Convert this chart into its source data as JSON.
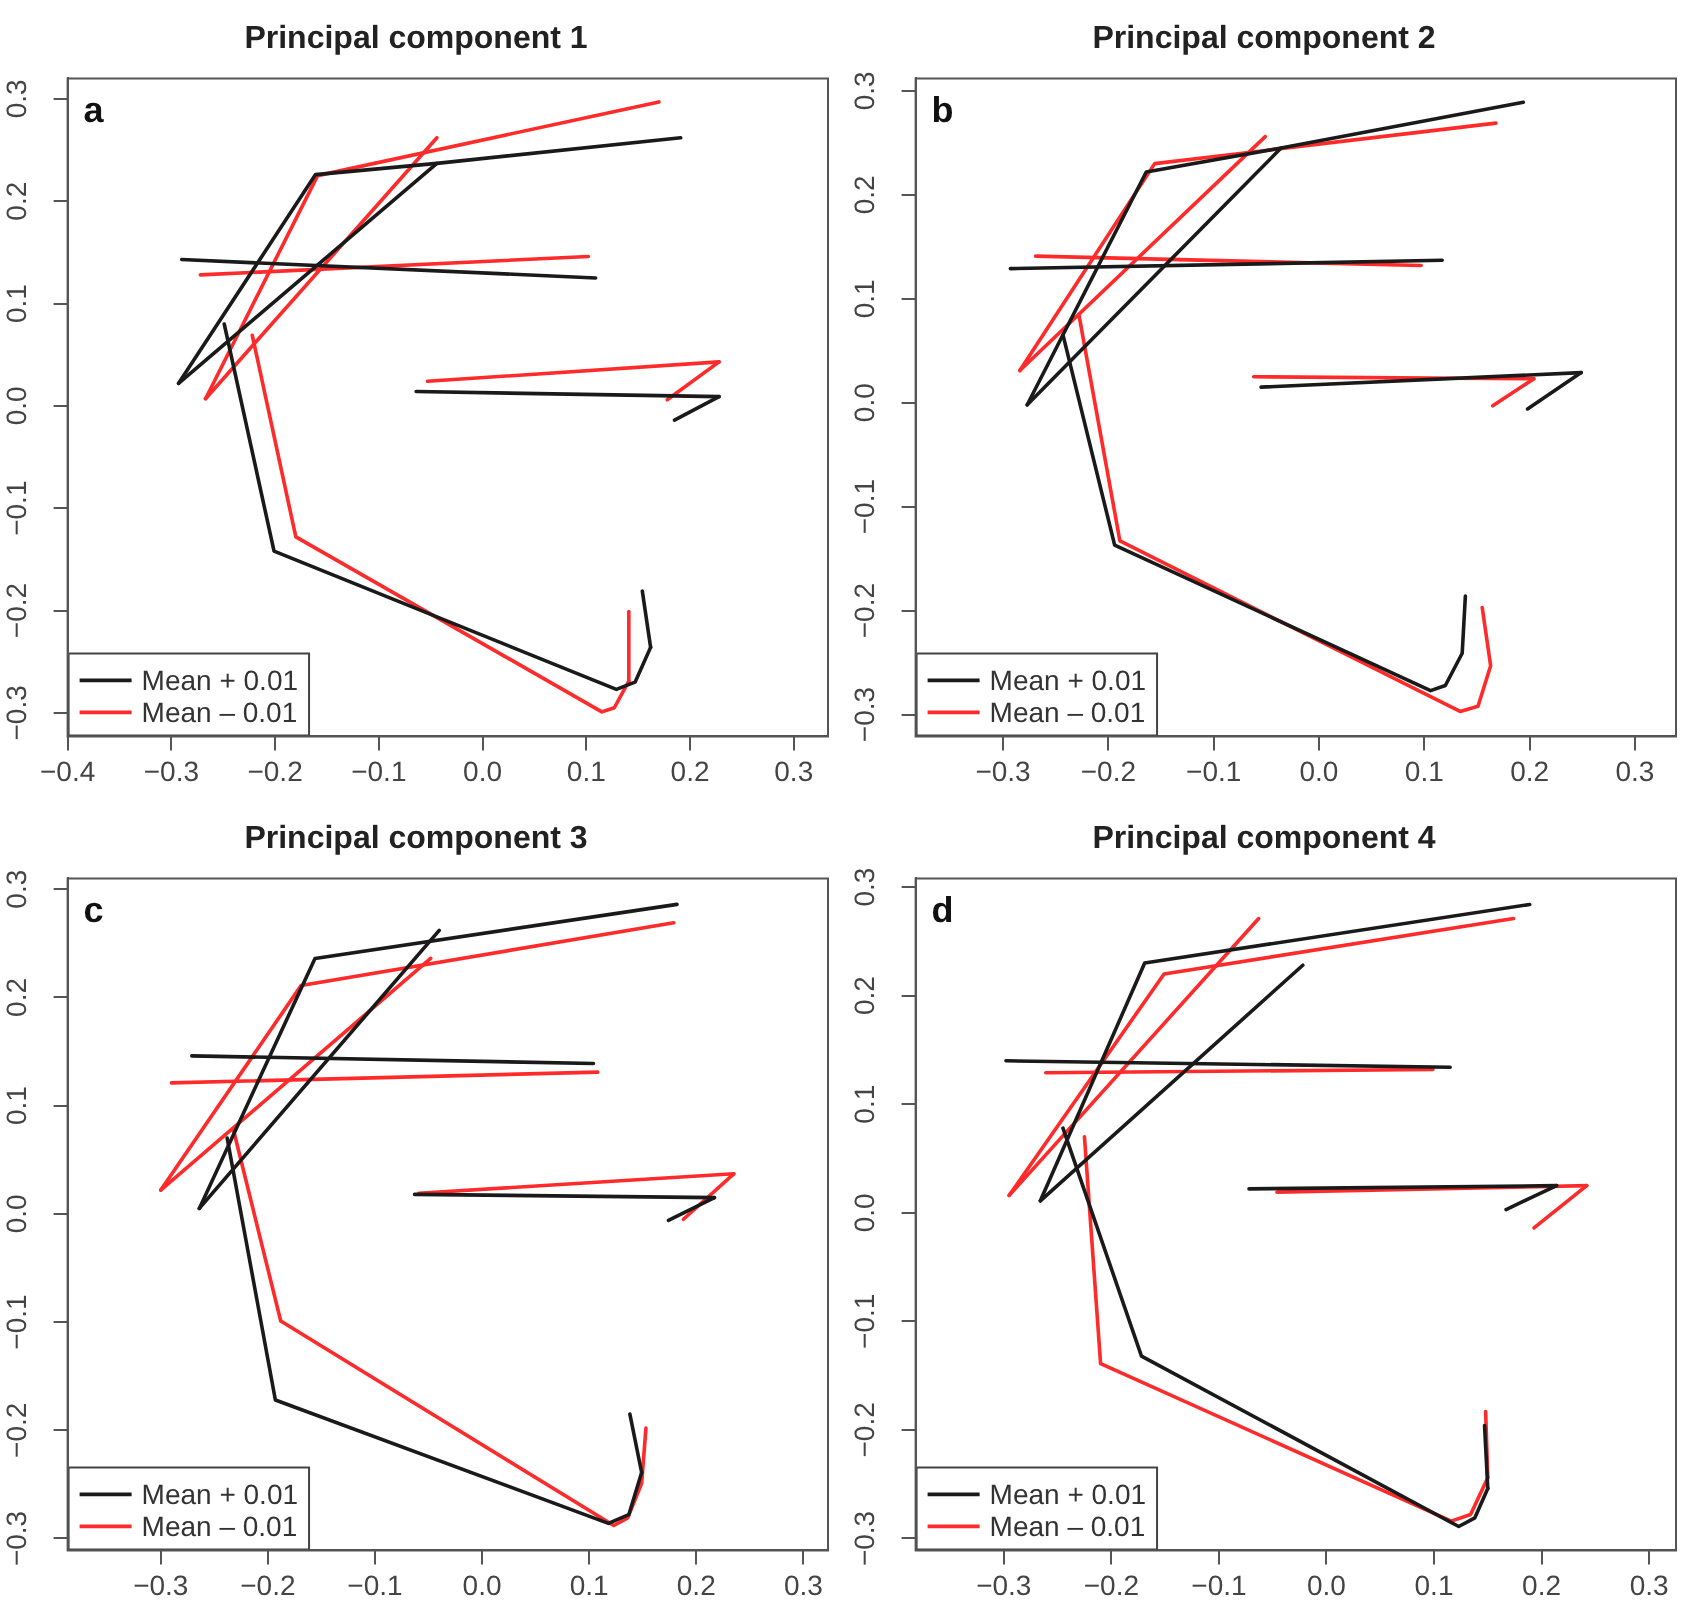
{
  "chart_data": [
    {
      "type": "line",
      "title": "Principal component 1",
      "annotations": [
        "a"
      ],
      "legend": "bottom left",
      "grid": false,
      "marker": "none",
      "line_style": "solid",
      "xlim": [
        -0.4,
        0.333
      ],
      "ylim": [
        -0.323,
        0.32
      ],
      "xticks": [
        {
          "value": -0.4,
          "label": "−0.4"
        },
        {
          "value": -0.3,
          "label": "−0.3"
        },
        {
          "value": -0.2,
          "label": "−0.2"
        },
        {
          "value": -0.1,
          "label": "−0.1"
        },
        {
          "value": 0,
          "label": "0.0"
        },
        {
          "value": 0.1,
          "label": "0.1"
        },
        {
          "value": 0.2,
          "label": "0.2"
        },
        {
          "value": 0.3,
          "label": "0.3"
        }
      ],
      "yticks": [
        {
          "value": -0.3,
          "label": "−0.3"
        },
        {
          "value": -0.2,
          "label": "−0.2"
        },
        {
          "value": -0.1,
          "label": "−0.1"
        },
        {
          "value": 0,
          "label": "0.0"
        },
        {
          "value": 0.1,
          "label": "0.1"
        },
        {
          "value": 0.2,
          "label": "0.2"
        },
        {
          "value": 0.3,
          "label": "0.3"
        }
      ],
      "series": [
        {
          "name": "Mean + 0.01",
          "color": "#1a1a1a",
          "x": [
            0.191,
            -0.044,
            -0.161,
            -0.293
          ],
          "values": [
            0.262,
            0.237,
            0.226,
            0.022
          ]
        },
        {
          "color": "#1a1a1a",
          "x": [
            -0.293,
            -0.044
          ],
          "values": [
            0.022,
            0.237
          ]
        },
        {
          "color": "#1a1a1a",
          "x": [
            -0.29,
            0.109
          ],
          "values": [
            0.143,
            0.125
          ]
        },
        {
          "color": "#1a1a1a",
          "x": [
            -0.064,
            0.228
          ],
          "values": [
            0.014,
            0.009
          ]
        },
        {
          "color": "#1a1a1a",
          "x": [
            0.228,
            0.185
          ],
          "values": [
            0.009,
            -0.014
          ]
        },
        {
          "color": "#1a1a1a",
          "x": [
            -0.249,
            -0.201,
            0.129,
            0.147,
            0.162
          ],
          "values": [
            0.08,
            -0.142,
            -0.277,
            -0.27,
            -0.236
          ]
        },
        {
          "color": "#1a1a1a",
          "x": [
            0.162,
            0.154
          ],
          "values": [
            -0.236,
            -0.181
          ]
        },
        {
          "name": "Mean – 0.01",
          "color": "#ff2a2a",
          "x": [
            0.17,
            -0.159,
            -0.267
          ],
          "values": [
            0.297,
            0.225,
            0.007
          ]
        },
        {
          "color": "#ff2a2a",
          "x": [
            -0.267,
            -0.044
          ],
          "values": [
            0.007,
            0.262
          ]
        },
        {
          "color": "#ff2a2a",
          "x": [
            -0.272,
            0.102
          ],
          "values": [
            0.128,
            0.146
          ]
        },
        {
          "color": "#ff2a2a",
          "x": [
            -0.053,
            0.228
          ],
          "values": [
            0.024,
            0.043
          ]
        },
        {
          "color": "#ff2a2a",
          "x": [
            0.228,
            0.178
          ],
          "values": [
            0.043,
            0.006
          ]
        },
        {
          "color": "#ff2a2a",
          "x": [
            -0.222,
            -0.18,
            0.115,
            0.127,
            0.141
          ],
          "values": [
            0.069,
            -0.128,
            -0.299,
            -0.295,
            -0.269
          ]
        },
        {
          "color": "#ff2a2a",
          "x": [
            0.141,
            0.141
          ],
          "values": [
            -0.269,
            -0.201
          ]
        }
      ]
    },
    {
      "type": "line",
      "title": "Principal component 2",
      "annotations": [
        "b"
      ],
      "legend": "bottom left",
      "grid": false,
      "marker": "none",
      "line_style": "solid",
      "xlim": [
        -0.383,
        0.339
      ],
      "ylim": [
        -0.321,
        0.312
      ],
      "xticks": [
        {
          "value": -0.3,
          "label": "−0.3"
        },
        {
          "value": -0.2,
          "label": "−0.2"
        },
        {
          "value": -0.1,
          "label": "−0.1"
        },
        {
          "value": 0,
          "label": "0.0"
        },
        {
          "value": 0.1,
          "label": "0.1"
        },
        {
          "value": 0.2,
          "label": "0.2"
        },
        {
          "value": 0.3,
          "label": "0.3"
        }
      ],
      "yticks": [
        {
          "value": -0.3,
          "label": "−0.3"
        },
        {
          "value": -0.2,
          "label": "−0.2"
        },
        {
          "value": -0.1,
          "label": "−0.1"
        },
        {
          "value": 0,
          "label": "0.0"
        },
        {
          "value": 0.1,
          "label": "0.1"
        },
        {
          "value": 0.2,
          "label": "0.2"
        },
        {
          "value": 0.3,
          "label": "0.3"
        }
      ],
      "series": [
        {
          "name": "Mean + 0.01",
          "color": "#1a1a1a",
          "x": [
            0.194,
            -0.036,
            -0.164,
            -0.277
          ],
          "values": [
            0.289,
            0.245,
            0.222,
            -0.002
          ]
        },
        {
          "color": "#1a1a1a",
          "x": [
            -0.277,
            -0.036
          ],
          "values": [
            -0.002,
            0.245
          ]
        },
        {
          "color": "#1a1a1a",
          "x": [
            -0.293,
            0.117
          ],
          "values": [
            0.129,
            0.137
          ]
        },
        {
          "color": "#1a1a1a",
          "x": [
            -0.055,
            0.249
          ],
          "values": [
            0.015,
            0.029
          ]
        },
        {
          "color": "#1a1a1a",
          "x": [
            0.249,
            0.198
          ],
          "values": [
            0.029,
            -0.006
          ]
        },
        {
          "color": "#1a1a1a",
          "x": [
            -0.243,
            -0.194,
            0.106,
            0.12,
            0.136,
            0.139
          ],
          "values": [
            0.065,
            -0.137,
            -0.277,
            -0.272,
            -0.241,
            -0.186
          ]
        },
        {
          "name": "Mean – 0.01",
          "color": "#ff2a2a",
          "x": [
            0.168,
            -0.156,
            -0.284
          ],
          "values": [
            0.269,
            0.23,
            0.031
          ]
        },
        {
          "color": "#ff2a2a",
          "x": [
            -0.284,
            -0.051
          ],
          "values": [
            0.031,
            0.256
          ]
        },
        {
          "color": "#ff2a2a",
          "x": [
            -0.269,
            0.097
          ],
          "values": [
            0.141,
            0.132
          ]
        },
        {
          "color": "#ff2a2a",
          "x": [
            -0.062,
            0.204
          ],
          "values": [
            0.025,
            0.023
          ]
        },
        {
          "color": "#ff2a2a",
          "x": [
            0.204,
            0.165
          ],
          "values": [
            0.023,
            -0.003
          ]
        },
        {
          "color": "#ff2a2a",
          "x": [
            -0.228,
            -0.189,
            0.134,
            0.151,
            0.163,
            0.155
          ],
          "values": [
            0.085,
            -0.133,
            -0.297,
            -0.292,
            -0.253,
            -0.197
          ]
        }
      ]
    },
    {
      "type": "line",
      "title": "Principal component 3",
      "annotations": [
        "c"
      ],
      "legend": "bottom left",
      "grid": false,
      "marker": "none",
      "line_style": "solid",
      "xlim": [
        -0.387,
        0.323
      ],
      "ylim": [
        -0.311,
        0.31
      ],
      "xticks": [
        {
          "value": -0.3,
          "label": "−0.3"
        },
        {
          "value": -0.2,
          "label": "−0.2"
        },
        {
          "value": -0.1,
          "label": "−0.1"
        },
        {
          "value": 0,
          "label": "0.0"
        },
        {
          "value": 0.1,
          "label": "0.1"
        },
        {
          "value": 0.2,
          "label": "0.2"
        },
        {
          "value": 0.3,
          "label": "0.3"
        }
      ],
      "yticks": [
        {
          "value": -0.3,
          "label": "−0.3"
        },
        {
          "value": -0.2,
          "label": "−0.2"
        },
        {
          "value": -0.1,
          "label": "−0.1"
        },
        {
          "value": 0,
          "label": "0.0"
        },
        {
          "value": 0.1,
          "label": "0.1"
        },
        {
          "value": 0.2,
          "label": "0.2"
        },
        {
          "value": 0.3,
          "label": "0.3"
        }
      ],
      "series": [
        {
          "name": "Mean + 0.01",
          "color": "#1a1a1a",
          "x": [
            0.182,
            -0.156,
            -0.264
          ],
          "values": [
            0.286,
            0.236,
            0.005
          ]
        },
        {
          "color": "#1a1a1a",
          "x": [
            -0.264,
            -0.04
          ],
          "values": [
            0.005,
            0.262
          ]
        },
        {
          "color": "#1a1a1a",
          "x": [
            -0.271,
            0.104
          ],
          "values": [
            0.146,
            0.139
          ]
        },
        {
          "color": "#1a1a1a",
          "x": [
            -0.063,
            0.217
          ],
          "values": [
            0.018,
            0.015
          ]
        },
        {
          "color": "#1a1a1a",
          "x": [
            0.217,
            0.174
          ],
          "values": [
            0.015,
            -0.006
          ]
        },
        {
          "color": "#1a1a1a",
          "x": [
            -0.238,
            -0.193,
            0.118,
            0.137,
            0.149
          ],
          "values": [
            0.07,
            -0.172,
            -0.286,
            -0.278,
            -0.239
          ]
        },
        {
          "color": "#1a1a1a",
          "x": [
            0.149,
            0.138
          ],
          "values": [
            -0.239,
            -0.185
          ]
        },
        {
          "name": "Mean – 0.01",
          "color": "#ff2a2a",
          "x": [
            0.179,
            -0.169,
            -0.3
          ],
          "values": [
            0.269,
            0.211,
            0.022
          ]
        },
        {
          "color": "#ff2a2a",
          "x": [
            -0.3,
            -0.048
          ],
          "values": [
            0.022,
            0.236
          ]
        },
        {
          "color": "#ff2a2a",
          "x": [
            -0.29,
            0.108
          ],
          "values": [
            0.121,
            0.131
          ]
        },
        {
          "color": "#ff2a2a",
          "x": [
            -0.059,
            0.235
          ],
          "values": [
            0.019,
            0.037
          ]
        },
        {
          "color": "#ff2a2a",
          "x": [
            0.235,
            0.188
          ],
          "values": [
            0.037,
            -0.005
          ]
        },
        {
          "color": "#ff2a2a",
          "x": [
            -0.232,
            -0.188,
            0.123,
            0.136,
            0.149,
            0.153
          ],
          "values": [
            0.077,
            -0.099,
            -0.288,
            -0.281,
            -0.249,
            -0.198
          ]
        }
      ]
    },
    {
      "type": "line",
      "title": "Principal component 4",
      "annotations": [
        "d"
      ],
      "legend": "bottom left",
      "grid": false,
      "marker": "none",
      "line_style": "solid",
      "xlim": [
        -0.382,
        0.325
      ],
      "ylim": [
        -0.311,
        0.308
      ],
      "xticks": [
        {
          "value": -0.3,
          "label": "−0.3"
        },
        {
          "value": -0.2,
          "label": "−0.2"
        },
        {
          "value": -0.1,
          "label": "−0.1"
        },
        {
          "value": 0,
          "label": "0.0"
        },
        {
          "value": 0.1,
          "label": "0.1"
        },
        {
          "value": 0.2,
          "label": "0.2"
        },
        {
          "value": 0.3,
          "label": "0.3"
        }
      ],
      "yticks": [
        {
          "value": -0.3,
          "label": "−0.3"
        },
        {
          "value": -0.2,
          "label": "−0.2"
        },
        {
          "value": -0.1,
          "label": "−0.1"
        },
        {
          "value": 0,
          "label": "0.0"
        },
        {
          "value": 0.1,
          "label": "0.1"
        },
        {
          "value": 0.2,
          "label": "0.2"
        },
        {
          "value": 0.3,
          "label": "0.3"
        }
      ],
      "series": [
        {
          "name": "Mean + 0.01",
          "color": "#1a1a1a",
          "x": [
            0.189,
            -0.169,
            -0.266
          ],
          "values": [
            0.284,
            0.23,
            0.011
          ]
        },
        {
          "color": "#1a1a1a",
          "x": [
            -0.266,
            -0.022
          ],
          "values": [
            0.011,
            0.228
          ]
        },
        {
          "color": "#1a1a1a",
          "x": [
            -0.298,
            0.115
          ],
          "values": [
            0.14,
            0.134
          ]
        },
        {
          "color": "#1a1a1a",
          "x": [
            -0.072,
            0.214
          ],
          "values": [
            0.022,
            0.025
          ]
        },
        {
          "color": "#1a1a1a",
          "x": [
            0.214,
            0.167
          ],
          "values": [
            0.025,
            0.003
          ]
        },
        {
          "color": "#1a1a1a",
          "x": [
            -0.245,
            -0.172,
            0.123,
            0.138,
            0.15
          ],
          "values": [
            0.078,
            -0.132,
            -0.289,
            -0.281,
            -0.254
          ]
        },
        {
          "color": "#1a1a1a",
          "x": [
            0.15,
            0.147
          ],
          "values": [
            -0.254,
            -0.196
          ]
        },
        {
          "name": "Mean – 0.01",
          "color": "#ff2a2a",
          "x": [
            0.174,
            -0.151,
            -0.295
          ],
          "values": [
            0.271,
            0.22,
            0.016
          ]
        },
        {
          "color": "#ff2a2a",
          "x": [
            -0.295,
            -0.063
          ],
          "values": [
            0.016,
            0.271
          ]
        },
        {
          "color": "#ff2a2a",
          "x": [
            -0.261,
            0.099
          ],
          "values": [
            0.129,
            0.132
          ]
        },
        {
          "color": "#ff2a2a",
          "x": [
            -0.046,
            0.242
          ],
          "values": [
            0.019,
            0.025
          ]
        },
        {
          "color": "#ff2a2a",
          "x": [
            0.242,
            0.193
          ],
          "values": [
            0.025,
            -0.014
          ]
        },
        {
          "color": "#ff2a2a",
          "x": [
            -0.225,
            -0.21,
            0.116,
            0.134,
            0.15
          ],
          "values": [
            0.07,
            -0.139,
            -0.284,
            -0.278,
            -0.244
          ]
        },
        {
          "color": "#ff2a2a",
          "x": [
            0.15,
            0.148
          ],
          "values": [
            -0.244,
            -0.183
          ]
        }
      ]
    }
  ]
}
